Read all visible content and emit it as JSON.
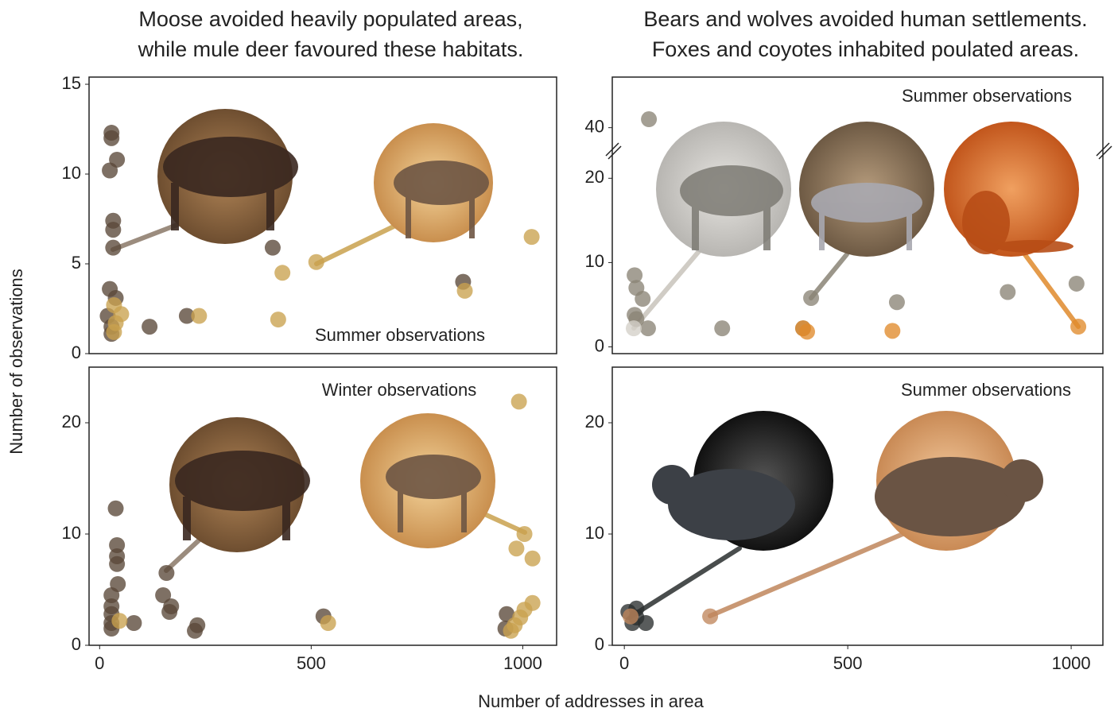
{
  "chart_data": [
    {
      "type": "scatter",
      "title": [
        "Moose avoided heavily populated areas,",
        "while mule deer favoured these habitats."
      ],
      "annotation": "Summer observations",
      "ylabel": "Number of observations",
      "xlim": [
        -25,
        1080
      ],
      "ylim": [
        0,
        15.4
      ],
      "yticks": [
        0,
        5,
        10,
        15
      ],
      "series": [
        {
          "color": "#5a4838",
          "x": [
            28,
            28,
            41,
            24,
            32,
            32,
            32,
            24,
            38,
            19,
            28,
            28,
            118,
            206,
            409,
            859
          ],
          "values": [
            12.3,
            12,
            10.8,
            10.2,
            7.4,
            6.9,
            5.9,
            3.6,
            3.1,
            2.1,
            1.5,
            1.1,
            1.5,
            2.1,
            5.9,
            4
          ]
        },
        {
          "color": "#c9a24e",
          "x": [
            34,
            51,
            38,
            34,
            235,
            422,
            432,
            512,
            863,
            1021
          ],
          "values": [
            2.7,
            2.2,
            1.7,
            1.2,
            2.1,
            1.9,
            4.5,
            5.1,
            3.5,
            6.5
          ]
        }
      ]
    },
    {
      "type": "scatter",
      "title": [
        "Bears and wolves avoided human settlements.",
        "Foxes and coyotes inhabited poulated areas."
      ],
      "annotation": "Summer observations",
      "xlim": [
        -27,
        1071
      ],
      "ylim": [
        -0.8,
        46
      ],
      "y_break": [
        24,
        38
      ],
      "yticks": [
        0,
        10,
        20,
        40
      ],
      "series": [
        {
          "color": "#8a8476",
          "x": [
            55,
            23,
            27,
            41,
            23,
            27,
            53,
            219,
            418,
            610,
            858,
            1012,
            400
          ],
          "values": [
            41,
            8.5,
            7,
            5.7,
            3.8,
            3.3,
            2.2,
            2.2,
            5.8,
            5.3,
            6.5,
            7.5,
            2.2
          ]
        },
        {
          "color": "#d4d0c8",
          "x": [
            21
          ],
          "values": [
            2.2
          ]
        },
        {
          "color": "#e08a2c",
          "x": [
            400,
            409,
            600,
            1016
          ],
          "values": [
            2.2,
            1.8,
            1.9,
            2.4
          ]
        }
      ]
    },
    {
      "type": "scatter",
      "annotation": "Winter observations",
      "xlim": [
        -25,
        1080
      ],
      "ylim": [
        0,
        25
      ],
      "yticks": [
        0,
        10,
        20
      ],
      "xticks": [
        0,
        500,
        1000
      ],
      "series": [
        {
          "color": "#5a4838",
          "x": [
            38,
            41,
            41,
            41,
            43,
            28,
            28,
            28,
            28,
            28,
            81,
            158,
            150,
            169,
            165,
            231,
            225,
            529,
            962,
            959
          ],
          "values": [
            12.3,
            9,
            8,
            7.3,
            5.5,
            4.5,
            3.5,
            2.8,
            2,
            1.5,
            2,
            6.5,
            4.5,
            3.5,
            3,
            1.8,
            1.3,
            2.6,
            2.8,
            1.5
          ]
        },
        {
          "color": "#c9a24e",
          "x": [
            47,
            540,
            991,
            1004,
            985,
            1023,
            1004,
            1023,
            981,
            972,
            994
          ],
          "values": [
            2.2,
            2,
            21.9,
            10,
            8.7,
            7.8,
            3.2,
            3.8,
            1.8,
            1.3,
            2.5
          ]
        }
      ]
    },
    {
      "type": "scatter",
      "annotation": "Summer observations",
      "xlabel": "Number of addresses in area",
      "xlim": [
        -27,
        1071
      ],
      "ylim": [
        0,
        25
      ],
      "yticks": [
        0,
        10,
        20
      ],
      "xticks": [
        0,
        500,
        1000
      ],
      "series": [
        {
          "color": "#2a2e2e",
          "x": [
            9,
            27,
            18,
            48,
            27
          ],
          "values": [
            3,
            3.3,
            2,
            2,
            2.5
          ]
        },
        {
          "color": "#c0875c",
          "x": [
            14,
            192
          ],
          "values": [
            2.6,
            2.6
          ]
        }
      ]
    }
  ]
}
